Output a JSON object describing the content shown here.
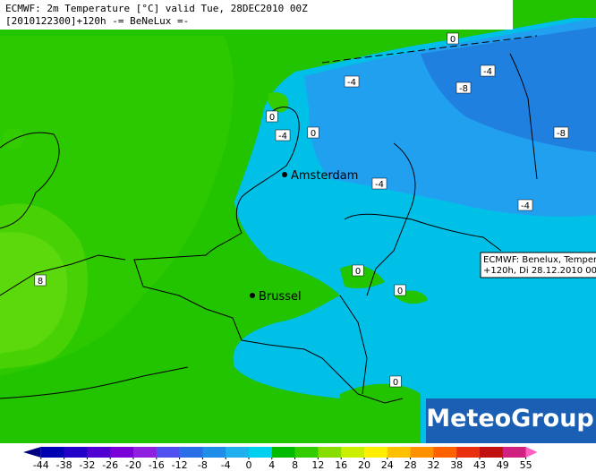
{
  "header": {
    "line1": "ECMWF: 2m Temperature [°C] valid Tue, 28DEC2010 00Z",
    "line2": "[2010122300]+120h -= BeNeLux =-"
  },
  "contour_labels": [
    "0",
    "-4",
    "-4",
    "-8",
    "0",
    "-4",
    "0",
    "-8",
    "-4",
    "-4",
    "8",
    "0",
    "0",
    "0"
  ],
  "cities": [
    {
      "name": "Amsterdam"
    },
    {
      "name": "Brussel"
    }
  ],
  "tooltip": {
    "line1": "ECMWF: Benelux, Temper-",
    "line2": "+120h, Di 28.12.2010 00z"
  },
  "logo": "MeteoGroup",
  "colorbar": {
    "ticks": [
      -44,
      -38,
      -32,
      -26,
      -20,
      -16,
      -12,
      -8,
      -4,
      0,
      4,
      8,
      12,
      16,
      20,
      24,
      28,
      32,
      38,
      43,
      49,
      55
    ],
    "colors": [
      "#000080",
      "#0000b0",
      "#2200c8",
      "#5000d0",
      "#7a00d8",
      "#9020e0",
      "#5050f0",
      "#2a6ee8",
      "#1f8ee8",
      "#20b0f0",
      "#00d0f0",
      "#00bb00",
      "#33cc00",
      "#88dd00",
      "#ccee00",
      "#ffee00",
      "#ffc000",
      "#ff9000",
      "#ff6000",
      "#e83010",
      "#c01010",
      "#d02080",
      "#ff60c0"
    ]
  }
}
